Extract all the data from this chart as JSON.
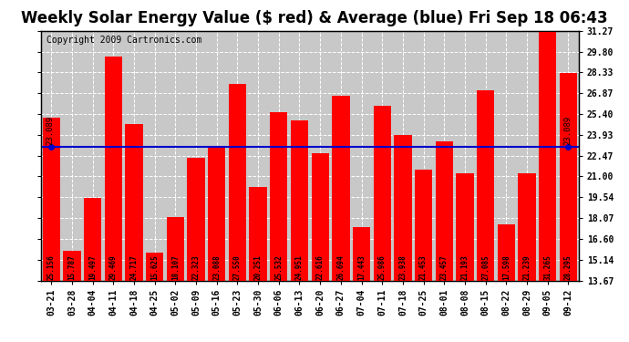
{
  "title": "Weekly Solar Energy Value ($ red) & Average (blue) Fri Sep 18 06:43",
  "copyright": "Copyright 2009 Cartronics.com",
  "categories": [
    "03-21",
    "03-28",
    "04-04",
    "04-11",
    "04-18",
    "04-25",
    "05-02",
    "05-09",
    "05-16",
    "05-23",
    "05-30",
    "06-06",
    "06-13",
    "06-20",
    "06-27",
    "07-04",
    "07-11",
    "07-18",
    "07-25",
    "08-01",
    "08-08",
    "08-15",
    "08-22",
    "08-29",
    "09-05",
    "09-12"
  ],
  "values": [
    25.156,
    15.787,
    19.497,
    29.469,
    24.717,
    15.625,
    18.107,
    22.323,
    23.088,
    27.55,
    20.251,
    25.532,
    24.951,
    22.616,
    26.694,
    17.443,
    25.986,
    23.938,
    21.453,
    23.457,
    21.193,
    27.085,
    17.598,
    21.239,
    31.265,
    28.295
  ],
  "average": 23.089,
  "bar_color": "#ff0000",
  "avg_line_color": "#0000cd",
  "background_color": "#ffffff",
  "plot_bg_color": "#c8c8c8",
  "grid_color": "#ffffff",
  "yticks": [
    13.67,
    15.14,
    16.6,
    18.07,
    19.54,
    21.0,
    22.47,
    23.93,
    25.4,
    26.87,
    28.33,
    29.8,
    31.27
  ],
  "ylim": [
    13.67,
    31.27
  ],
  "ymin": 13.67,
  "avg_label": "23.089",
  "title_fontsize": 12,
  "copyright_fontsize": 7,
  "tick_fontsize": 7,
  "bar_value_fontsize": 5.5,
  "avg_fontsize": 6.5
}
